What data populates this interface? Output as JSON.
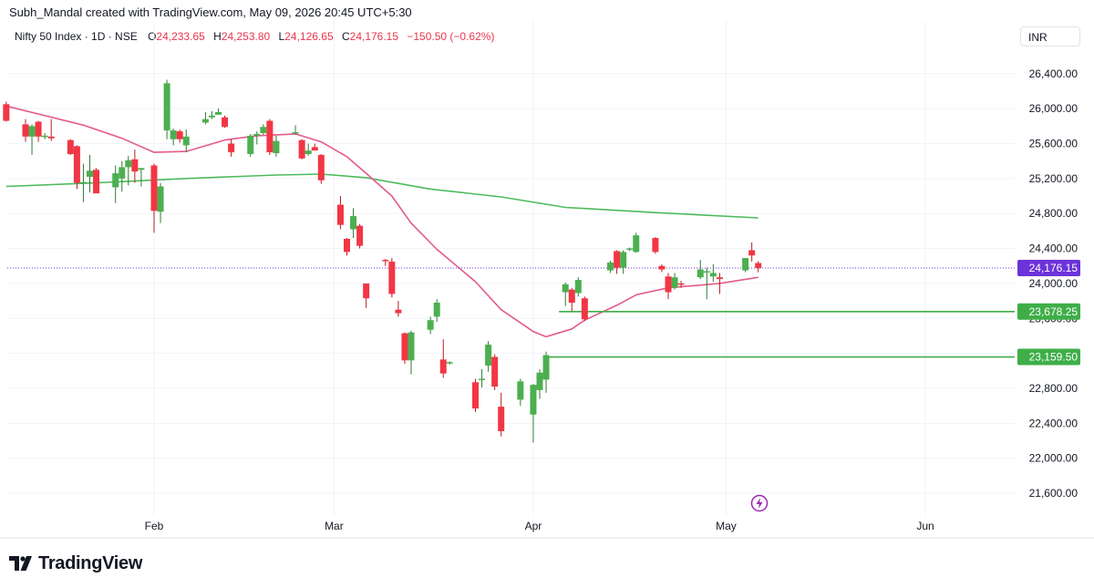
{
  "attribution": "Subh_Mandal created with TradingView.com, May 09, 2026 20:45 UTC+5:30",
  "legend": {
    "symbol": "Nifty 50 Index · 1D · NSE",
    "open_label": "O",
    "open": "24,233.65",
    "high_label": "H",
    "high": "24,253.80",
    "low_label": "L",
    "low": "24,126.65",
    "close_label": "C",
    "close": "24,176.15",
    "change": "−150.50 (−0.62%)"
  },
  "currency": "INR",
  "brand": "TradingView",
  "colors": {
    "up": "#4caf50",
    "down": "#f23645",
    "short_ma": "#e45a8c",
    "long_ma": "#4cbb5c",
    "last_price_label": "#6c33d9",
    "level": "#3fae49"
  },
  "chart_data": {
    "type": "candlestick",
    "x_tick_labels": [
      "Feb",
      "Mar",
      "Apr",
      "May",
      "Jun"
    ],
    "y_tick_labels": [
      "26,400.00",
      "26,000.00",
      "25,600.00",
      "25,200.00",
      "24,800.00",
      "24,400.00",
      "24,000.00",
      "23,600.00",
      "23,200.00",
      "22,800.00",
      "22,400.00",
      "22,000.00",
      "21,600.00"
    ],
    "ylim": [
      21340,
      26700
    ],
    "last_price": {
      "value": 24176.15,
      "label": "24,176.15"
    },
    "levels": [
      {
        "value": 23678.25,
        "label": "23,678.25"
      },
      {
        "value": 23159.5,
        "label": "23,159.50"
      }
    ],
    "candles": [
      {
        "d": "2026-01-09",
        "o": 26050,
        "h": 26080,
        "l": 25850,
        "c": 25860
      },
      {
        "d": "2026-01-12",
        "o": 25820,
        "h": 25880,
        "l": 25620,
        "c": 25680
      },
      {
        "d": "2026-01-13",
        "o": 25680,
        "h": 25820,
        "l": 25470,
        "c": 25800
      },
      {
        "d": "2026-01-14",
        "o": 25850,
        "h": 25860,
        "l": 25620,
        "c": 25680
      },
      {
        "d": "2026-01-15",
        "o": 25680,
        "h": 25720,
        "l": 25650,
        "c": 25690
      },
      {
        "d": "2026-01-16",
        "o": 25680,
        "h": 25880,
        "l": 25630,
        "c": 25660
      },
      {
        "d": "2026-01-19",
        "o": 25640,
        "h": 25650,
        "l": 25470,
        "c": 25480
      },
      {
        "d": "2026-01-20",
        "o": 25570,
        "h": 25580,
        "l": 25080,
        "c": 25150
      },
      {
        "d": "2026-01-21",
        "o": 25150,
        "h": 25370,
        "l": 24930,
        "c": 25160
      },
      {
        "d": "2026-01-22",
        "o": 25220,
        "h": 25470,
        "l": 25040,
        "c": 25290
      },
      {
        "d": "2026-01-23",
        "o": 25300,
        "h": 25320,
        "l": 25040,
        "c": 25030
      },
      {
        "d": "2026-01-26",
        "o": 25100,
        "h": 25350,
        "l": 24920,
        "c": 25260
      },
      {
        "d": "2026-01-27",
        "o": 25200,
        "h": 25400,
        "l": 25050,
        "c": 25330
      },
      {
        "d": "2026-01-28",
        "o": 25330,
        "h": 25460,
        "l": 25120,
        "c": 25410
      },
      {
        "d": "2026-01-29",
        "o": 25420,
        "h": 25530,
        "l": 25150,
        "c": 25280
      },
      {
        "d": "2026-01-30",
        "o": 25300,
        "h": 25310,
        "l": 25110,
        "c": 25320
      },
      {
        "d": "2026-02-01",
        "o": 25350,
        "h": 25370,
        "l": 24580,
        "c": 24830
      },
      {
        "d": "2026-02-02",
        "o": 24820,
        "h": 25150,
        "l": 24690,
        "c": 25110
      },
      {
        "d": "2026-02-03",
        "o": 25750,
        "h": 26330,
        "l": 25650,
        "c": 26290
      },
      {
        "d": "2026-02-04",
        "o": 25650,
        "h": 25770,
        "l": 25580,
        "c": 25750
      },
      {
        "d": "2026-02-05",
        "o": 25740,
        "h": 25760,
        "l": 25610,
        "c": 25650
      },
      {
        "d": "2026-02-06",
        "o": 25580,
        "h": 25760,
        "l": 25500,
        "c": 25680
      },
      {
        "d": "2026-02-09",
        "o": 25840,
        "h": 25960,
        "l": 25820,
        "c": 25880
      },
      {
        "d": "2026-02-10",
        "o": 25900,
        "h": 25970,
        "l": 25880,
        "c": 25920
      },
      {
        "d": "2026-02-11",
        "o": 25930,
        "h": 26000,
        "l": 25930,
        "c": 25960
      },
      {
        "d": "2026-02-12",
        "o": 25900,
        "h": 25920,
        "l": 25780,
        "c": 25790
      },
      {
        "d": "2026-02-13",
        "o": 25600,
        "h": 25650,
        "l": 25450,
        "c": 25500
      },
      {
        "d": "2026-02-16",
        "o": 25480,
        "h": 25710,
        "l": 25450,
        "c": 25690
      },
      {
        "d": "2026-02-17",
        "o": 25690,
        "h": 25740,
        "l": 25590,
        "c": 25710
      },
      {
        "d": "2026-02-18",
        "o": 25720,
        "h": 25820,
        "l": 25700,
        "c": 25790
      },
      {
        "d": "2026-02-19",
        "o": 25860,
        "h": 25880,
        "l": 25470,
        "c": 25500
      },
      {
        "d": "2026-02-20",
        "o": 25490,
        "h": 25690,
        "l": 25450,
        "c": 25630
      },
      {
        "d": "2026-02-23",
        "o": 25720,
        "h": 25810,
        "l": 25700,
        "c": 25730
      },
      {
        "d": "2026-02-24",
        "o": 25640,
        "h": 25650,
        "l": 25420,
        "c": 25430
      },
      {
        "d": "2026-02-25",
        "o": 25480,
        "h": 25600,
        "l": 25460,
        "c": 25520
      },
      {
        "d": "2026-02-26",
        "o": 25560,
        "h": 25600,
        "l": 25530,
        "c": 25520
      },
      {
        "d": "2026-02-27",
        "o": 25470,
        "h": 25480,
        "l": 25140,
        "c": 25180
      },
      {
        "d": "2026-03-02",
        "o": 24900,
        "h": 25000,
        "l": 24620,
        "c": 24670
      },
      {
        "d": "2026-03-03",
        "o": 24510,
        "h": 24520,
        "l": 24320,
        "c": 24360
      },
      {
        "d": "2026-03-04",
        "o": 24620,
        "h": 24860,
        "l": 24520,
        "c": 24770
      },
      {
        "d": "2026-03-05",
        "o": 24660,
        "h": 24680,
        "l": 24400,
        "c": 24430
      },
      {
        "d": "2026-03-06",
        "o": 24000,
        "h": 24000,
        "l": 23720,
        "c": 23830
      },
      {
        "d": "2026-03-09",
        "o": 24270,
        "h": 24280,
        "l": 24200,
        "c": 24260
      },
      {
        "d": "2026-03-10",
        "o": 24250,
        "h": 24290,
        "l": 23840,
        "c": 23880
      },
      {
        "d": "2026-03-11",
        "o": 23700,
        "h": 23800,
        "l": 23620,
        "c": 23660
      },
      {
        "d": "2026-03-12",
        "o": 23430,
        "h": 23440,
        "l": 23080,
        "c": 23120
      },
      {
        "d": "2026-03-13",
        "o": 23120,
        "h": 23460,
        "l": 22960,
        "c": 23440
      },
      {
        "d": "2026-03-16",
        "o": 23470,
        "h": 23620,
        "l": 23420,
        "c": 23580
      },
      {
        "d": "2026-03-17",
        "o": 23620,
        "h": 23820,
        "l": 23560,
        "c": 23780
      },
      {
        "d": "2026-03-18",
        "o": 23130,
        "h": 23360,
        "l": 22920,
        "c": 22970
      },
      {
        "d": "2026-03-19",
        "o": 23090,
        "h": 23110,
        "l": 23070,
        "c": 23100
      },
      {
        "d": "2026-03-23",
        "o": 22870,
        "h": 22910,
        "l": 22530,
        "c": 22570
      },
      {
        "d": "2026-03-24",
        "o": 22900,
        "h": 23020,
        "l": 22810,
        "c": 22910
      },
      {
        "d": "2026-03-25",
        "o": 23060,
        "h": 23340,
        "l": 22990,
        "c": 23300
      },
      {
        "d": "2026-03-26",
        "o": 23160,
        "h": 23190,
        "l": 22780,
        "c": 22820
      },
      {
        "d": "2026-03-27",
        "o": 22590,
        "h": 22750,
        "l": 22250,
        "c": 22310
      },
      {
        "d": "2026-03-30",
        "o": 22670,
        "h": 22910,
        "l": 22600,
        "c": 22880
      },
      {
        "d": "2026-04-01",
        "o": 22500,
        "h": 22850,
        "l": 22180,
        "c": 22840
      },
      {
        "d": "2026-04-02",
        "o": 22780,
        "h": 23020,
        "l": 22680,
        "c": 22980
      },
      {
        "d": "2026-04-03",
        "o": 22900,
        "h": 23220,
        "l": 22750,
        "c": 23180
      },
      {
        "d": "2026-04-06",
        "o": 23900,
        "h": 24010,
        "l": 23740,
        "c": 23990
      },
      {
        "d": "2026-04-07",
        "o": 23930,
        "h": 23950,
        "l": 23680,
        "c": 23780
      },
      {
        "d": "2026-04-08",
        "o": 23890,
        "h": 24070,
        "l": 23850,
        "c": 24040
      },
      {
        "d": "2026-04-09",
        "o": 23830,
        "h": 23850,
        "l": 23570,
        "c": 23590
      },
      {
        "d": "2026-04-13",
        "o": 24150,
        "h": 24260,
        "l": 24120,
        "c": 24240
      },
      {
        "d": "2026-04-14",
        "o": 24370,
        "h": 24380,
        "l": 24110,
        "c": 24180
      },
      {
        "d": "2026-04-15",
        "o": 24180,
        "h": 24380,
        "l": 24110,
        "c": 24360
      },
      {
        "d": "2026-04-16",
        "o": 24390,
        "h": 24410,
        "l": 24370,
        "c": 24400
      },
      {
        "d": "2026-04-17",
        "o": 24360,
        "h": 24580,
        "l": 24350,
        "c": 24550
      },
      {
        "d": "2026-04-20",
        "o": 24520,
        "h": 24530,
        "l": 24340,
        "c": 24360
      },
      {
        "d": "2026-04-21",
        "o": 24200,
        "h": 24220,
        "l": 24130,
        "c": 24160
      },
      {
        "d": "2026-04-22",
        "o": 24080,
        "h": 24120,
        "l": 23820,
        "c": 23900
      },
      {
        "d": "2026-04-23",
        "o": 23950,
        "h": 24120,
        "l": 23930,
        "c": 24070
      },
      {
        "d": "2026-04-24",
        "o": 24000,
        "h": 24030,
        "l": 23950,
        "c": 23990
      },
      {
        "d": "2026-04-27",
        "o": 24070,
        "h": 24270,
        "l": 24050,
        "c": 24160
      },
      {
        "d": "2026-04-28",
        "o": 24130,
        "h": 24180,
        "l": 23820,
        "c": 24140
      },
      {
        "d": "2026-04-29",
        "o": 24080,
        "h": 24220,
        "l": 24020,
        "c": 24120
      },
      {
        "d": "2026-04-30",
        "o": 24070,
        "h": 24120,
        "l": 23880,
        "c": 24050
      },
      {
        "d": "2026-05-04",
        "o": 24150,
        "h": 24290,
        "l": 24130,
        "c": 24290
      },
      {
        "d": "2026-05-05",
        "o": 24380,
        "h": 24470,
        "l": 24250,
        "c": 24320
      },
      {
        "d": "2026-05-06",
        "o": 24233.65,
        "h": 24253.8,
        "l": 24126.65,
        "c": 24176.15
      }
    ],
    "short_ma": [
      {
        "d": "2026-01-09",
        "v": 26030
      },
      {
        "d": "2026-01-21",
        "v": 25810
      },
      {
        "d": "2026-01-27",
        "v": 25660
      },
      {
        "d": "2026-02-01",
        "v": 25500
      },
      {
        "d": "2026-02-06",
        "v": 25510
      },
      {
        "d": "2026-02-12",
        "v": 25640
      },
      {
        "d": "2026-02-17",
        "v": 25690
      },
      {
        "d": "2026-02-23",
        "v": 25710
      },
      {
        "d": "2026-02-27",
        "v": 25620
      },
      {
        "d": "2026-03-03",
        "v": 25450
      },
      {
        "d": "2026-03-06",
        "v": 25260
      },
      {
        "d": "2026-03-10",
        "v": 25000
      },
      {
        "d": "2026-03-13",
        "v": 24690
      },
      {
        "d": "2026-03-17",
        "v": 24390
      },
      {
        "d": "2026-03-23",
        "v": 24020
      },
      {
        "d": "2026-03-27",
        "v": 23700
      },
      {
        "d": "2026-04-01",
        "v": 23450
      },
      {
        "d": "2026-04-03",
        "v": 23390
      },
      {
        "d": "2026-04-07",
        "v": 23480
      },
      {
        "d": "2026-04-09",
        "v": 23580
      },
      {
        "d": "2026-04-14",
        "v": 23750
      },
      {
        "d": "2026-04-17",
        "v": 23870
      },
      {
        "d": "2026-04-22",
        "v": 23950
      },
      {
        "d": "2026-04-27",
        "v": 23980
      },
      {
        "d": "2026-04-30",
        "v": 24000
      },
      {
        "d": "2026-05-06",
        "v": 24070
      }
    ],
    "long_ma": [
      {
        "d": "2026-01-09",
        "v": 25110
      },
      {
        "d": "2026-01-23",
        "v": 25150
      },
      {
        "d": "2026-02-06",
        "v": 25200
      },
      {
        "d": "2026-02-20",
        "v": 25240
      },
      {
        "d": "2026-02-27",
        "v": 25250
      },
      {
        "d": "2026-03-06",
        "v": 25210
      },
      {
        "d": "2026-03-16",
        "v": 25080
      },
      {
        "d": "2026-03-27",
        "v": 24990
      },
      {
        "d": "2026-04-06",
        "v": 24870
      },
      {
        "d": "2026-04-20",
        "v": 24810
      },
      {
        "d": "2026-05-06",
        "v": 24750
      }
    ]
  }
}
